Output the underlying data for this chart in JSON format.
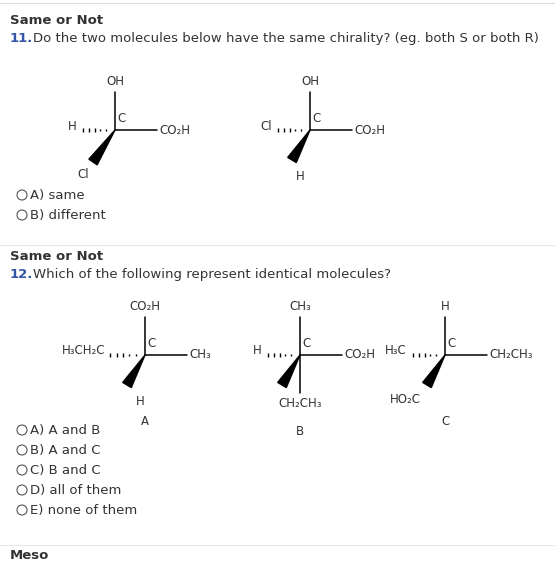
{
  "bg_color": "#ffffff",
  "border_color": "#dddddd",
  "title1": "Same or Not",
  "q11_num": "11.",
  "q11_text": "Do the two molecules below have the same chirality? (eg. both S or both R)",
  "q12_num": "12.",
  "q12_text": "Which of the following represent identical molecules?",
  "title2": "Same or Not",
  "q11_options": [
    "A) same",
    "B) different"
  ],
  "q12_options": [
    "A) A and B",
    "B) A and C",
    "C) B and C",
    "D) all of them",
    "E) none of them"
  ],
  "footer": "Meso",
  "font_color": "#333333",
  "num_color": "#3355aa"
}
